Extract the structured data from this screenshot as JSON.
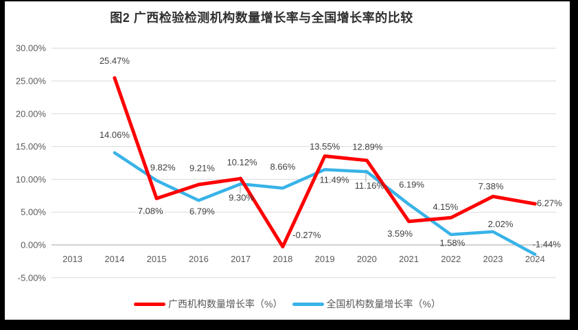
{
  "chart_data": {
    "type": "line",
    "title": "图2 广西检验检测机构数量增长率与全国增长率的比较",
    "categories": [
      "2013",
      "2014",
      "2015",
      "2016",
      "2017",
      "2018",
      "2019",
      "2020",
      "2021",
      "2022",
      "2023",
      "2024"
    ],
    "series": [
      {
        "name": "广西机构数量增长率（%）",
        "color": "#fe0000",
        "values": [
          null,
          25.47,
          7.08,
          9.21,
          10.12,
          -0.27,
          13.55,
          12.89,
          3.59,
          4.15,
          7.38,
          6.27
        ],
        "labels": [
          null,
          "25.47%",
          "7.08%",
          "9.21%",
          "10.12%",
          "-0.27%",
          "13.55%",
          "12.89%",
          "3.59%",
          "4.15%",
          "7.38%",
          "6.27%"
        ]
      },
      {
        "name": "全国机构数量增长率（%）",
        "color": "#38b3e8",
        "values": [
          null,
          14.06,
          9.82,
          6.79,
          9.3,
          8.66,
          11.49,
          11.16,
          6.19,
          1.58,
          2.02,
          -1.44
        ],
        "labels": [
          null,
          "14.06%",
          "9.82%",
          "6.79%",
          "9.30%",
          "8.66%",
          "11.49%",
          "11.16%",
          "6.19%",
          "1.58%",
          "2.02%",
          "-1.44%"
        ]
      }
    ],
    "y_axis": {
      "tick_labels": [
        "30.00%",
        "25.00%",
        "20.00%",
        "15.00%",
        "10.00%",
        "5.00%",
        "0.00%",
        "-5.00%"
      ],
      "tick_values": [
        30,
        25,
        20,
        15,
        10,
        5,
        0,
        -5
      ],
      "min": -5,
      "max": 30,
      "step": 5
    },
    "grid": true,
    "legend_position": "bottom"
  },
  "colors": {
    "background": "#000000",
    "plot_background": "#ffffff",
    "gridline": "#d9d9d9",
    "zero_line": "#b3b3b3",
    "axis_text": "#595959",
    "data_label_text": "#404040",
    "leader_line": "#a6a6a6"
  }
}
